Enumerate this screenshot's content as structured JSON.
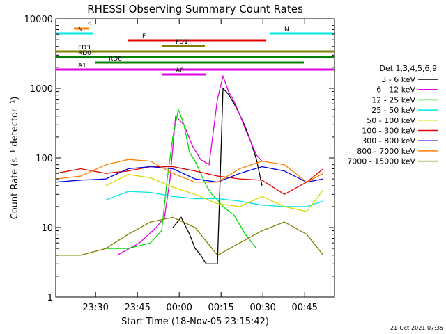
{
  "chart_data": {
    "type": "line",
    "title": "RHESSI Observing Summary Count Rates",
    "xlabel": "Start Time (18-Nov-05 23:15:42)",
    "ylabel": "Count Rate (s⁻¹ detector⁻¹)",
    "y_scale": "log",
    "ylim": [
      1,
      10000
    ],
    "xlim_minutes_after_start": [
      0,
      100
    ],
    "x_tick_labels": [
      "23:30",
      "23:45",
      "00:00",
      "00:15",
      "00:30",
      "00:45"
    ],
    "x_tick_minutes_after_start": [
      14.3,
      29.3,
      44.3,
      59.3,
      74.3,
      89.3
    ],
    "y_tick_labels": [
      "1",
      "10",
      "100",
      "1000",
      "10000"
    ],
    "y_tick_values": [
      1,
      10,
      100,
      1000,
      10000
    ],
    "legend_title": "Det 1,3,4,5,6,9",
    "legend_position": "right",
    "series": [
      {
        "name": "3 - 6 keV",
        "color": "#000000",
        "x": [
          42,
          45,
          48,
          50,
          52,
          54,
          56,
          58,
          60,
          62,
          64,
          66,
          68,
          70,
          72,
          74
        ],
        "y": [
          10,
          14,
          8,
          5,
          4,
          3,
          3,
          3,
          1000,
          820,
          600,
          420,
          280,
          170,
          95,
          40
        ]
      },
      {
        "name": "6 - 12 keV",
        "color": "#e000e0",
        "x": [
          22,
          30,
          36,
          39,
          41,
          43,
          46,
          49,
          52,
          55,
          58,
          60,
          62,
          64,
          66,
          68,
          70,
          72,
          74
        ],
        "y": [
          4,
          6,
          10,
          14,
          50,
          400,
          300,
          150,
          95,
          80,
          700,
          1500,
          900,
          650,
          420,
          260,
          170,
          110,
          90
        ]
      },
      {
        "name": "12 - 25 keV",
        "color": "#00e000",
        "x": [
          18,
          26,
          34,
          38,
          40,
          42,
          44,
          46,
          48,
          50,
          52,
          54,
          56,
          58,
          60,
          64,
          68,
          72
        ],
        "y": [
          5,
          5,
          6,
          9,
          50,
          200,
          500,
          300,
          120,
          90,
          60,
          40,
          30,
          25,
          20,
          15,
          8,
          5
        ]
      },
      {
        "name": "25 - 50 keV",
        "color": "#00e8e8",
        "x": [
          18,
          26,
          34,
          42,
          50,
          58,
          66,
          74,
          82,
          90,
          96
        ],
        "y": [
          25,
          33,
          32,
          28,
          26,
          26,
          24,
          21,
          20,
          20,
          24
        ]
      },
      {
        "name": "50 - 100 keV",
        "color": "#d8d800",
        "x": [
          18,
          26,
          34,
          42,
          50,
          58,
          66,
          74,
          82,
          90,
          96
        ],
        "y": [
          40,
          58,
          52,
          38,
          30,
          22,
          20,
          28,
          20,
          17,
          35
        ]
      },
      {
        "name": "100 - 300 keV",
        "color": "#e00000",
        "x": [
          0,
          9,
          18,
          26,
          34,
          42,
          50,
          58,
          66,
          74,
          82,
          90,
          96
        ],
        "y": [
          60,
          70,
          60,
          65,
          75,
          75,
          65,
          55,
          50,
          48,
          30,
          45,
          70
        ]
      },
      {
        "name": "300 - 800 keV",
        "color": "#0000e0",
        "x": [
          0,
          9,
          18,
          26,
          34,
          42,
          50,
          58,
          66,
          74,
          82,
          90,
          96
        ],
        "y": [
          45,
          48,
          50,
          70,
          75,
          70,
          50,
          45,
          60,
          75,
          65,
          45,
          50
        ]
      },
      {
        "name": "800 - 7000 keV",
        "color": "#ff8000",
        "x": [
          0,
          9,
          18,
          26,
          34,
          42,
          50,
          58,
          66,
          74,
          82,
          90,
          96
        ],
        "y": [
          50,
          55,
          80,
          95,
          90,
          60,
          45,
          45,
          70,
          90,
          80,
          45,
          60
        ]
      },
      {
        "name": "7000 - 15000 keV",
        "color": "#808000",
        "x": [
          0,
          9,
          18,
          26,
          34,
          42,
          50,
          58,
          66,
          74,
          82,
          90,
          96
        ],
        "y": [
          4,
          4,
          5,
          8,
          12,
          14,
          10,
          4,
          6,
          9,
          12,
          8,
          4
        ]
      }
    ],
    "flag_bars": [
      {
        "label": "S",
        "color": "#ff8000",
        "x": [
          6.5,
          12
        ]
      },
      {
        "label": "N",
        "color": "#00e8e8",
        "x": [
          0,
          13.5
        ]
      },
      {
        "label": "N",
        "color": "#00e8e8",
        "x": [
          77,
          100
        ]
      },
      {
        "label": "F",
        "color": "#e00000",
        "x": [
          26,
          75.5
        ]
      },
      {
        "label": "FD1",
        "color": "#808000",
        "x": [
          38,
          53.5
        ]
      },
      {
        "label": "FD3",
        "color": "#808000",
        "x": [
          0,
          100
        ]
      },
      {
        "label": "RD0",
        "color": "#008000",
        "x": [
          0,
          100
        ]
      },
      {
        "label": "RD6",
        "color": "#008000",
        "x": [
          14,
          89
        ]
      },
      {
        "label": "A1",
        "color": "#e000e0",
        "x": [
          0,
          100
        ]
      },
      {
        "label": "A0",
        "color": "#e000e0",
        "x": [
          38,
          54
        ]
      }
    ],
    "timestamp": "21-Oct-2021 07:35"
  }
}
